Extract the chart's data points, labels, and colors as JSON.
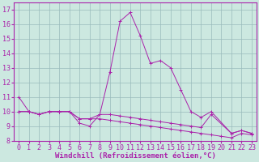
{
  "xlabel": "Windchill (Refroidissement éolien,°C)",
  "x": [
    0,
    1,
    2,
    3,
    4,
    5,
    6,
    7,
    8,
    9,
    10,
    11,
    12,
    13,
    14,
    15,
    16,
    17,
    18,
    19,
    20,
    21,
    22,
    23
  ],
  "series1": [
    11,
    10,
    9.8,
    10,
    10,
    10,
    9.2,
    9.0,
    9.8,
    12.7,
    16.2,
    16.8,
    15.2,
    13.3,
    13.5,
    13.0,
    11.5,
    10.0,
    9.6,
    10.0,
    null,
    8.5,
    8.7,
    8.5
  ],
  "series2": [
    10,
    10,
    9.8,
    10,
    10,
    10,
    9.5,
    9.5,
    9.8,
    9.8,
    9.7,
    9.6,
    9.5,
    9.4,
    9.3,
    9.2,
    9.1,
    9.0,
    8.9,
    9.8,
    null,
    8.5,
    8.7,
    8.5
  ],
  "series3": [
    10,
    10,
    9.8,
    10,
    10,
    10,
    9.5,
    9.5,
    9.5,
    9.4,
    9.3,
    9.2,
    9.1,
    9.0,
    8.9,
    8.8,
    8.7,
    8.6,
    8.5,
    8.4,
    8.3,
    8.2,
    8.5,
    8.4
  ],
  "ylim": [
    8,
    17.5
  ],
  "xlim": [
    -0.5,
    23.5
  ],
  "line_color": "#aa22aa",
  "bg_color": "#cce8e0",
  "grid_color": "#99bbbb",
  "xlabel_fontsize": 6.5,
  "tick_fontsize": 6
}
